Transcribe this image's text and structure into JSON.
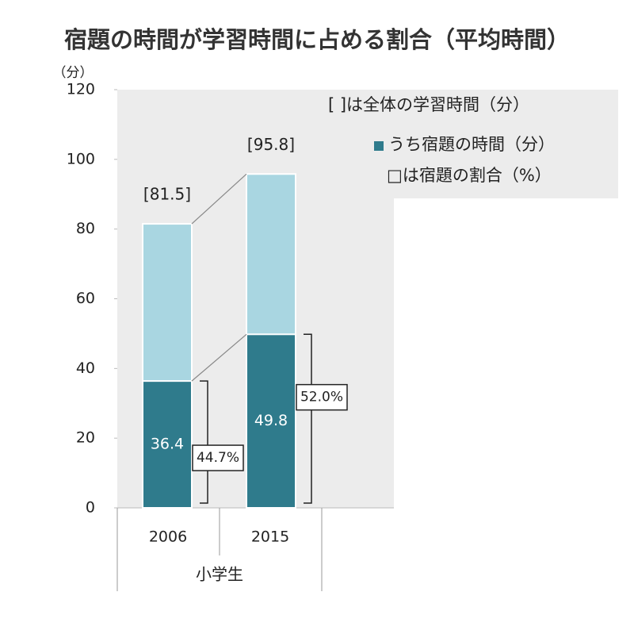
{
  "chart_data": {
    "type": "overlay_bar",
    "title": "宿題の時間が学習時間に占める割合（平均時間）",
    "y_unit": "（分）",
    "group_label": "小学生",
    "categories": [
      "2006",
      "2015"
    ],
    "series": [
      {
        "name": "[ ]は全体の学習時間（分）",
        "color": "#a9d6e1",
        "values": [
          81.5,
          95.8
        ],
        "value_labels": [
          "[81.5]",
          "[95.8]"
        ]
      },
      {
        "name": "うち宿題の時間（分）",
        "color": "#2f7b8c",
        "values": [
          36.4,
          49.8
        ]
      }
    ],
    "shares": {
      "name": "□は宿題の割合（%）",
      "values": [
        44.7,
        52.0
      ],
      "value_labels": [
        "44.7%",
        "52.0%"
      ]
    },
    "ylim": [
      0,
      120
    ],
    "yticks": [
      0,
      20,
      40,
      60,
      80,
      100,
      120
    ],
    "grid": false
  }
}
